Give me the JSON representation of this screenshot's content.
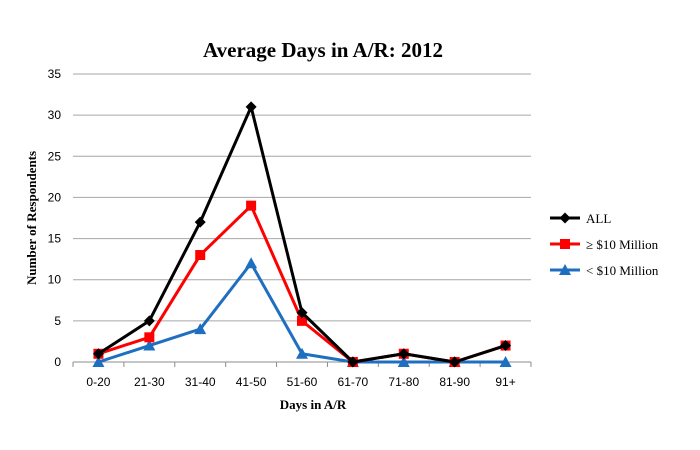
{
  "chart_data": {
    "type": "line",
    "title": "Average Days in A/R: 2012",
    "xlabel": "Days in A/R",
    "ylabel": "Number of Respondents",
    "categories": [
      "0-20",
      "21-30",
      "31-40",
      "41-50",
      "51-60",
      "61-70",
      "71-80",
      "81-90",
      "91+"
    ],
    "ylim": [
      0,
      35
    ],
    "yticks": [
      0,
      5,
      10,
      15,
      20,
      25,
      30,
      35
    ],
    "grid": true,
    "legend_position": "right",
    "series": [
      {
        "name": "ALL",
        "color": "#000000",
        "marker": "diamond",
        "values": [
          1,
          5,
          17,
          31,
          6,
          0,
          1,
          0,
          2
        ]
      },
      {
        "name": "≥ $10 Million",
        "color": "#ff0000",
        "marker": "square",
        "values": [
          1,
          3,
          13,
          19,
          5,
          0,
          1,
          0,
          2
        ]
      },
      {
        "name": "< $10 Million",
        "color": "#1f6fc0",
        "marker": "triangle",
        "values": [
          0,
          2,
          4,
          12,
          1,
          0,
          0,
          0,
          0
        ]
      }
    ]
  }
}
